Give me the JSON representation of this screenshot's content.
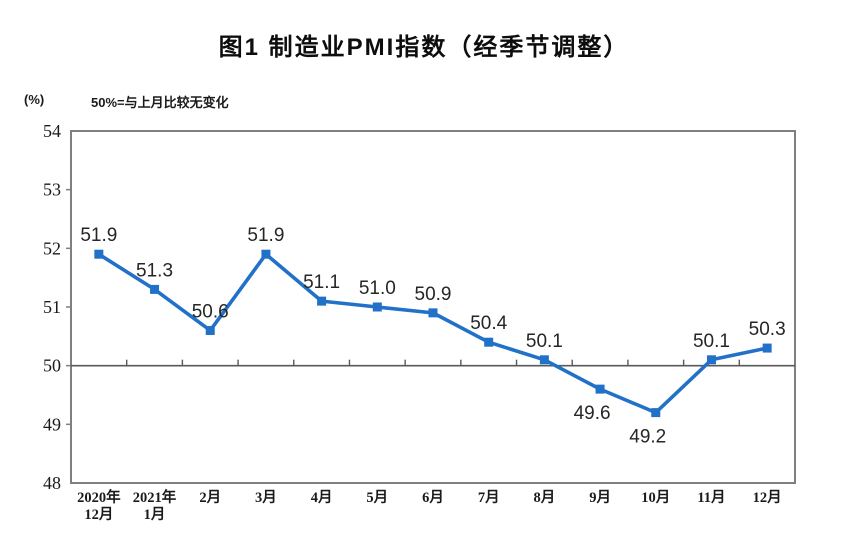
{
  "figure": {
    "title": "图1 制造业PMI指数（经季节调整）",
    "unit_label": "(%)",
    "note": "50%=与上月比较无变化"
  },
  "chart_data": {
    "type": "line",
    "title": "图1 制造业PMI指数（经季节调整）",
    "series_name": "制造业PMI",
    "unit_label": "(%)",
    "note": "50%=与上月比较无变化",
    "categories": [
      "2020年\n12月",
      "2021年\n1月",
      "2月",
      "3月",
      "4月",
      "5月",
      "6月",
      "7月",
      "8月",
      "9月",
      "10月",
      "11月",
      "12月"
    ],
    "values": [
      51.9,
      51.3,
      50.6,
      51.9,
      51.1,
      51.0,
      50.9,
      50.4,
      50.1,
      49.6,
      49.2,
      50.1,
      50.3
    ],
    "label_positions": [
      "above",
      "above",
      "above",
      "above",
      "above",
      "above",
      "above",
      "above",
      "above",
      "below",
      "below",
      "above",
      "above"
    ],
    "xlabel": "",
    "ylabel": "(%)",
    "ylim": [
      48,
      54
    ],
    "ytick_step": 1,
    "reference_line": 50,
    "grid": false,
    "legend": "none",
    "marker": "square",
    "colors": {
      "line": "#2271c8",
      "axis": "#7f7f7f",
      "refline": "#595959",
      "text": "#262626"
    }
  }
}
